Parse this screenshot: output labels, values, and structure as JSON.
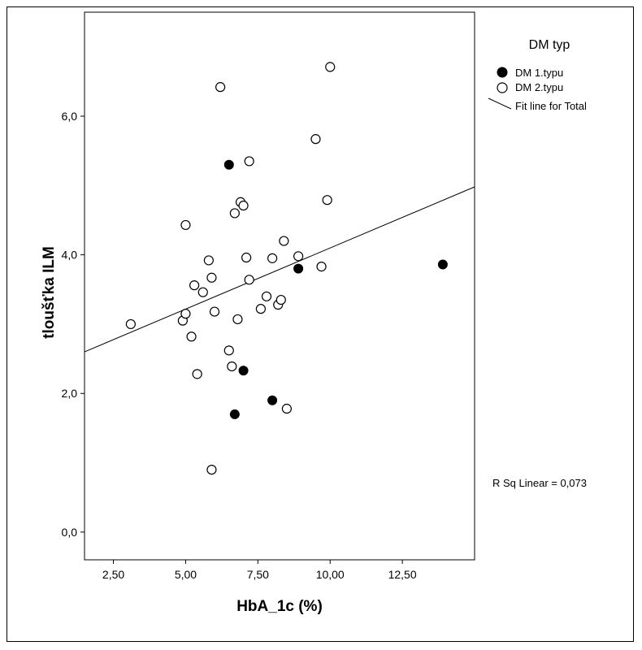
{
  "chart_data": {
    "type": "scatter",
    "xlabel": "HbA_1c (%)",
    "ylabel": "tloušťka ILM",
    "xlim": [
      1.5,
      15.0
    ],
    "ylim": [
      -0.4,
      7.5
    ],
    "x_ticks": [
      2.5,
      5.0,
      7.5,
      10.0,
      12.5
    ],
    "x_tick_labels": [
      "2,50",
      "5,00",
      "7,50",
      "10,00",
      "12,50"
    ],
    "y_ticks": [
      0,
      2,
      4,
      6
    ],
    "y_tick_labels": [
      "0,0",
      "2,0",
      "4,0",
      "6,0"
    ],
    "legend": {
      "title": "DM typ",
      "entries": [
        "DM 1.typu",
        "DM 2.typu",
        "Fit line for Total"
      ],
      "placement": "right"
    },
    "series": [
      {
        "name": "DM 1.typu",
        "marker": "filled-circle",
        "points": [
          {
            "x": 6.5,
            "y": 5.3
          },
          {
            "x": 8.9,
            "y": 3.8
          },
          {
            "x": 7.0,
            "y": 2.33
          },
          {
            "x": 8.0,
            "y": 1.9
          },
          {
            "x": 6.7,
            "y": 1.7
          },
          {
            "x": 13.9,
            "y": 3.86
          }
        ]
      },
      {
        "name": "DM 2.typu",
        "marker": "open-circle",
        "points": [
          {
            "x": 3.1,
            "y": 3.0
          },
          {
            "x": 4.9,
            "y": 3.05
          },
          {
            "x": 5.0,
            "y": 4.43
          },
          {
            "x": 5.0,
            "y": 3.15
          },
          {
            "x": 5.2,
            "y": 2.82
          },
          {
            "x": 5.3,
            "y": 3.56
          },
          {
            "x": 5.4,
            "y": 2.28
          },
          {
            "x": 5.6,
            "y": 3.46
          },
          {
            "x": 5.8,
            "y": 3.92
          },
          {
            "x": 5.9,
            "y": 3.67
          },
          {
            "x": 5.9,
            "y": 0.9
          },
          {
            "x": 6.0,
            "y": 3.18
          },
          {
            "x": 6.2,
            "y": 6.42
          },
          {
            "x": 6.5,
            "y": 2.62
          },
          {
            "x": 6.6,
            "y": 2.39
          },
          {
            "x": 6.7,
            "y": 4.6
          },
          {
            "x": 6.8,
            "y": 3.07
          },
          {
            "x": 6.9,
            "y": 4.76
          },
          {
            "x": 7.0,
            "y": 4.71
          },
          {
            "x": 7.1,
            "y": 3.96
          },
          {
            "x": 7.2,
            "y": 5.35
          },
          {
            "x": 7.2,
            "y": 3.64
          },
          {
            "x": 7.6,
            "y": 3.22
          },
          {
            "x": 7.8,
            "y": 3.4
          },
          {
            "x": 8.0,
            "y": 3.95
          },
          {
            "x": 8.2,
            "y": 3.28
          },
          {
            "x": 8.3,
            "y": 3.35
          },
          {
            "x": 8.4,
            "y": 4.2
          },
          {
            "x": 8.5,
            "y": 1.78
          },
          {
            "x": 8.9,
            "y": 3.98
          },
          {
            "x": 9.5,
            "y": 5.67
          },
          {
            "x": 9.7,
            "y": 3.83
          },
          {
            "x": 9.9,
            "y": 4.79
          },
          {
            "x": 10.0,
            "y": 6.71
          }
        ]
      }
    ],
    "fit_line": {
      "name": "Fit line for Total",
      "x": [
        1.5,
        15.0
      ],
      "y": [
        2.6,
        4.98
      ]
    },
    "annotation": "R Sq Linear = 0,073"
  }
}
